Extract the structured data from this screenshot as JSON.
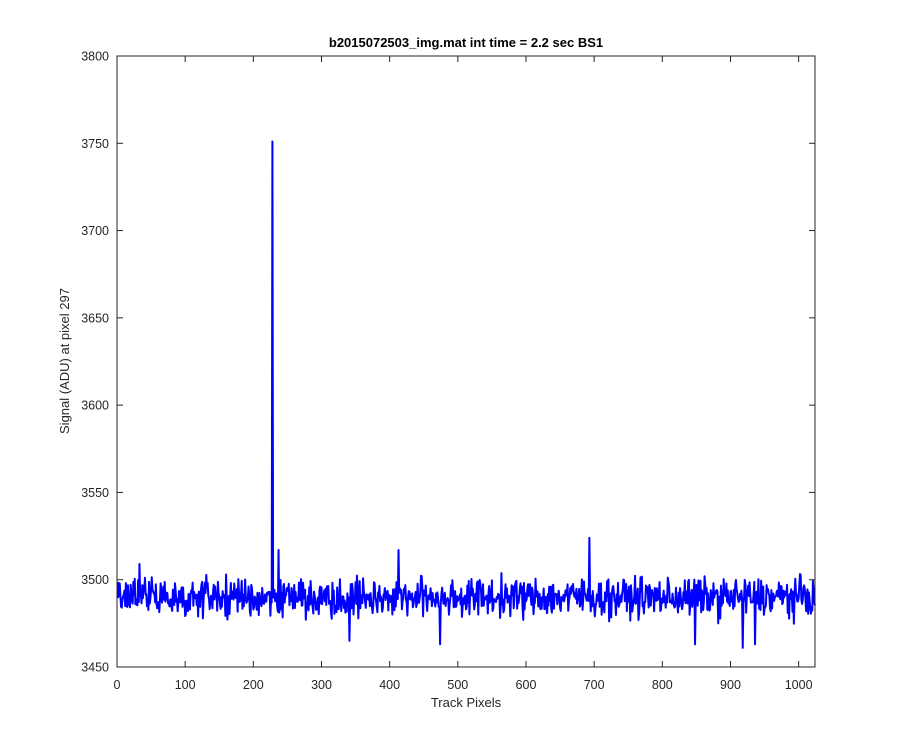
{
  "chart_data": {
    "type": "line",
    "title": "b2015072503_img.mat int time = 2.2 sec   BS1",
    "xlabel": "Track Pixels",
    "ylabel": "Signal (ADU) at pixel 297",
    "xlim": [
      0,
      1024
    ],
    "ylim": [
      3450,
      3800
    ],
    "xticks": [
      0,
      100,
      200,
      300,
      400,
      500,
      600,
      700,
      800,
      900,
      1000
    ],
    "yticks": [
      3450,
      3500,
      3550,
      3600,
      3650,
      3700,
      3750,
      3800
    ],
    "grid": false,
    "legend": "none",
    "series": [
      {
        "color": "#0000ff",
        "noise_baseline": 3490,
        "noise_amplitude": 16,
        "x_start": 1,
        "x_end": 1024,
        "spikes": [
          {
            "x": 228,
            "y": 3751
          },
          {
            "x": 693,
            "y": 3524
          },
          {
            "x": 413,
            "y": 3517
          },
          {
            "x": 237,
            "y": 3517
          },
          {
            "x": 33,
            "y": 3509
          },
          {
            "x": 341,
            "y": 3465
          },
          {
            "x": 474,
            "y": 3463
          },
          {
            "x": 848,
            "y": 3463
          },
          {
            "x": 918,
            "y": 3461
          },
          {
            "x": 936,
            "y": 3463
          }
        ]
      }
    ]
  }
}
